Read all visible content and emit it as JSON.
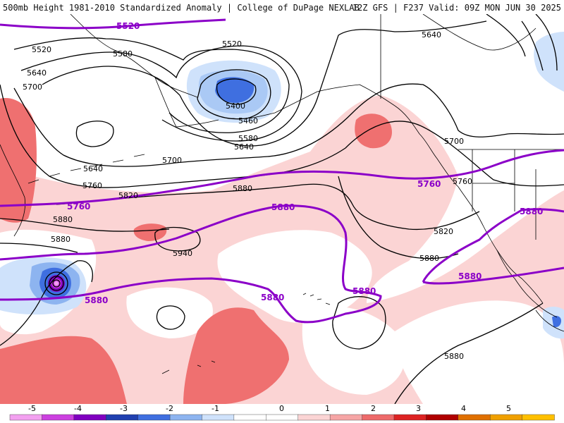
{
  "header": {
    "title": "500mb Height 1981-2010 Standardized Anomaly | College of DuPage NEXLAB",
    "run_info": "12Z GFS | F237 Valid: 09Z MON JUN 30 2025"
  },
  "contour_labels": [
    "5400",
    "5460",
    "5520",
    "5520",
    "5580",
    "5580",
    "5640",
    "5640",
    "5640",
    "5700",
    "5700",
    "5700",
    "5760",
    "5760",
    "5820",
    "5820",
    "5880",
    "5880",
    "5880",
    "5880",
    "5940"
  ],
  "thick_labels": [
    "5520",
    "5760",
    "5760",
    "5880",
    "5880",
    "5880",
    "5880",
    "5880"
  ],
  "colorbar": {
    "ticks": [
      "-5",
      "-4",
      "-3",
      "-2",
      "-1",
      "0",
      "1",
      "2",
      "3",
      "4",
      "5"
    ],
    "colors": [
      "#f3a0f0",
      "#cc40e0",
      "#8000c0",
      "#2040b0",
      "#3f6fe0",
      "#8db4f0",
      "#cfe2fb",
      "#ffffff",
      "#ffffff",
      "#fbd4d4",
      "#f6a5a5",
      "#ee6a6a",
      "#dd2222",
      "#b00000",
      "#e07000",
      "#f0a000",
      "#ffc000"
    ]
  },
  "colors": {
    "height_contour": "#000000",
    "thick_contour": "#8b00c8",
    "coastline": "#000000",
    "pos_anomaly_1": "#fbd4d4",
    "pos_anomaly_2": "#ef7070",
    "neg_anomaly_1": "#cfe2fb",
    "neg_anomaly_2": "#8db4f0",
    "neg_anomaly_3": "#3f6fe0"
  }
}
